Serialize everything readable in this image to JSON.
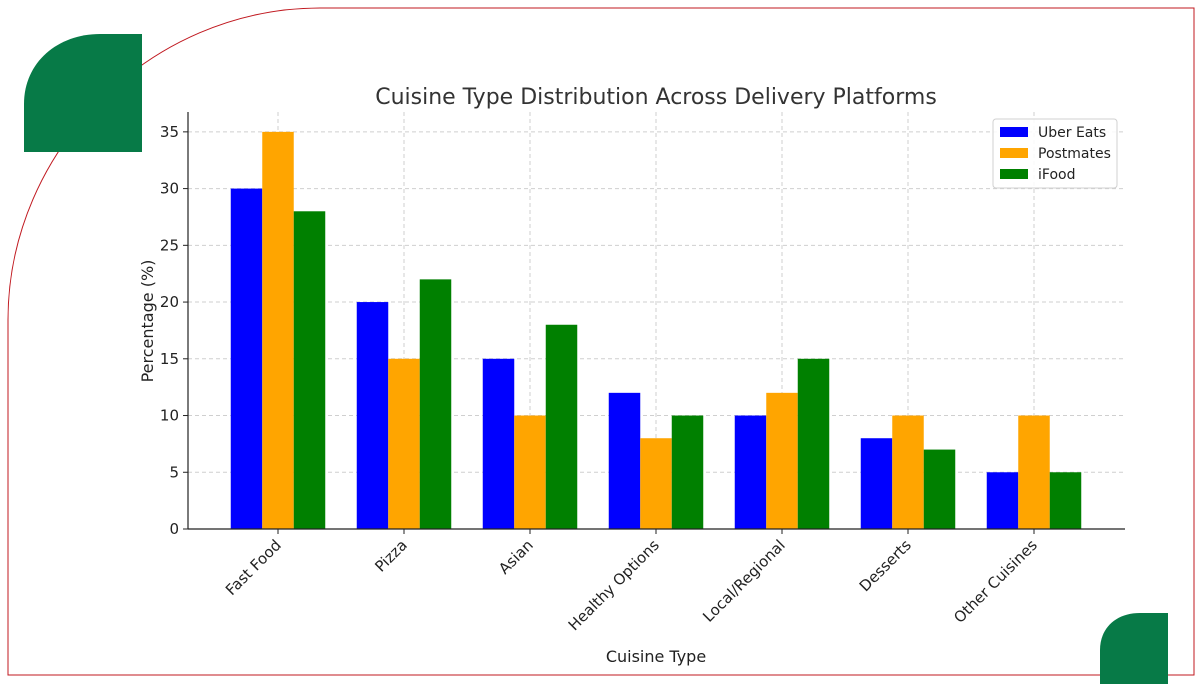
{
  "chart_data": {
    "type": "bar",
    "title": "Cuisine Type Distribution Across Delivery Platforms",
    "xlabel": "Cuisine Type",
    "ylabel": "Percentage (%)",
    "ylim": [
      0,
      36.75
    ],
    "yticks": [
      0,
      5,
      10,
      15,
      20,
      25,
      30,
      35
    ],
    "categories": [
      "Fast Food",
      "Pizza",
      "Asian",
      "Healthy Options",
      "Local/Regional",
      "Desserts",
      "Other Cuisines"
    ],
    "series": [
      {
        "name": "Uber Eats",
        "color": "#0000ff",
        "values": [
          30,
          20,
          15,
          12,
          10,
          8,
          5
        ]
      },
      {
        "name": "Postmates",
        "color": "#ffa500",
        "values": [
          35,
          15,
          10,
          8,
          12,
          10,
          10
        ]
      },
      {
        "name": "iFood",
        "color": "#008000",
        "values": [
          28,
          22,
          18,
          10,
          15,
          7,
          5
        ]
      }
    ],
    "grid": true,
    "legend_position": "top-right"
  },
  "decor": {
    "accent_color": "#077a47",
    "border_color": "#c0181f"
  }
}
